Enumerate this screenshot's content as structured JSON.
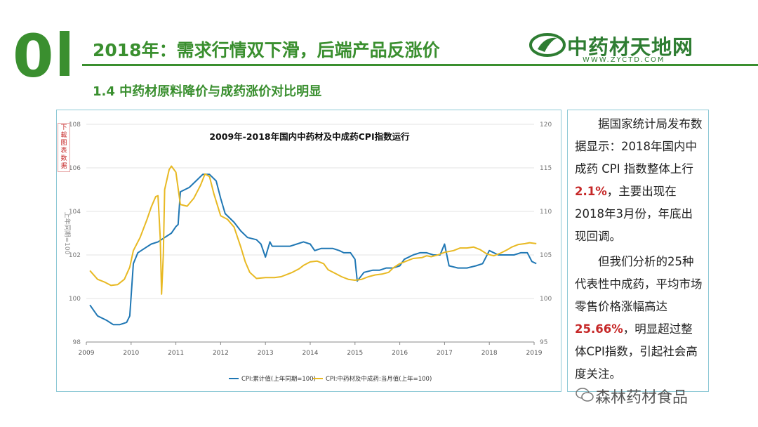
{
  "slide": {
    "number": "0",
    "title": "2018年：需求行情双下滑，后端产品反涨价",
    "subtitle": "1.4  中药材原料降价与成药涨价对比明显"
  },
  "logo": {
    "text": "中药材天地网",
    "url": "WWW.ZYCTD.COM"
  },
  "side_button": "下载图表数据",
  "text_panel": {
    "p1_a": "据国家统计局发布数据显示：2018年国内中成药 CPI 指数整体上行",
    "p1_highlight": "2.1%",
    "p1_b": "，主要出现在2018年3月份，年底出现回调。",
    "p2_a": "但我们分析的25种代表性中成药，平均市场零售价格涨幅高达",
    "p2_highlight": "25.66%",
    "p2_b": "，明显超过整体CPI指数，引起社会高度关注。"
  },
  "watermark": "森林药材食品",
  "colors": {
    "green": "#3a8f2f",
    "blue_series": "#1f77b4",
    "gold_series": "#e8b923",
    "highlight_red": "#c62828"
  },
  "chart_data": {
    "type": "line",
    "title": "2009年-2018年国内中药材及中成药CPI指数运行",
    "ylabel_left": "上年同期=100",
    "ylim_left": [
      98,
      108
    ],
    "yticks_left": [
      "98",
      "100",
      "102",
      "104",
      "106",
      "108"
    ],
    "ylim_right": [
      95,
      120
    ],
    "yticks_right": [
      "95",
      "100",
      "105",
      "110",
      "115",
      "120"
    ],
    "xlim": [
      2009,
      2019
    ],
    "xticks": [
      "2009",
      "2010",
      "2011",
      "2012",
      "2013",
      "2014",
      "2015",
      "2016",
      "2017",
      "2018",
      "2019"
    ],
    "grid": "horizontal",
    "legend_position": "bottom",
    "series": [
      {
        "name": "CPI:累计值(上年同期=100)",
        "axis": "left",
        "color": "#1f77b4",
        "points": [
          [
            2009.08,
            99.7
          ],
          [
            2009.25,
            99.2
          ],
          [
            2009.45,
            99.0
          ],
          [
            2009.6,
            98.8
          ],
          [
            2009.75,
            98.8
          ],
          [
            2009.9,
            98.9
          ],
          [
            2009.97,
            99.2
          ],
          [
            2010.05,
            101.6
          ],
          [
            2010.15,
            102.1
          ],
          [
            2010.3,
            102.3
          ],
          [
            2010.45,
            102.5
          ],
          [
            2010.6,
            102.6
          ],
          [
            2010.75,
            102.8
          ],
          [
            2010.9,
            103.0
          ],
          [
            2011.0,
            103.3
          ],
          [
            2011.05,
            103.4
          ],
          [
            2011.1,
            104.9
          ],
          [
            2011.3,
            105.1
          ],
          [
            2011.45,
            105.4
          ],
          [
            2011.6,
            105.7
          ],
          [
            2011.75,
            105.7
          ],
          [
            2011.9,
            105.4
          ],
          [
            2012.0,
            104.6
          ],
          [
            2012.1,
            103.9
          ],
          [
            2012.3,
            103.5
          ],
          [
            2012.45,
            103.1
          ],
          [
            2012.6,
            102.8
          ],
          [
            2012.8,
            102.7
          ],
          [
            2012.9,
            102.5
          ],
          [
            2013.0,
            101.9
          ],
          [
            2013.1,
            102.6
          ],
          [
            2013.15,
            102.4
          ],
          [
            2013.4,
            102.4
          ],
          [
            2013.55,
            102.4
          ],
          [
            2013.7,
            102.5
          ],
          [
            2013.85,
            102.6
          ],
          [
            2014.0,
            102.5
          ],
          [
            2014.1,
            102.2
          ],
          [
            2014.25,
            102.3
          ],
          [
            2014.5,
            102.3
          ],
          [
            2014.65,
            102.2
          ],
          [
            2014.75,
            102.1
          ],
          [
            2014.9,
            102.1
          ],
          [
            2015.0,
            101.8
          ],
          [
            2015.05,
            100.8
          ],
          [
            2015.2,
            101.2
          ],
          [
            2015.4,
            101.3
          ],
          [
            2015.55,
            101.3
          ],
          [
            2015.7,
            101.4
          ],
          [
            2015.85,
            101.4
          ],
          [
            2016.0,
            101.5
          ],
          [
            2016.1,
            101.8
          ],
          [
            2016.3,
            102.0
          ],
          [
            2016.45,
            102.1
          ],
          [
            2016.6,
            102.1
          ],
          [
            2016.75,
            102.0
          ],
          [
            2016.9,
            102.0
          ],
          [
            2017.0,
            102.5
          ],
          [
            2017.1,
            101.5
          ],
          [
            2017.3,
            101.4
          ],
          [
            2017.5,
            101.4
          ],
          [
            2017.7,
            101.5
          ],
          [
            2017.85,
            101.6
          ],
          [
            2018.0,
            102.2
          ],
          [
            2018.2,
            102.0
          ],
          [
            2018.4,
            102.0
          ],
          [
            2018.55,
            102.0
          ],
          [
            2018.7,
            102.1
          ],
          [
            2018.85,
            102.1
          ],
          [
            2018.95,
            101.7
          ],
          [
            2019.05,
            101.6
          ]
        ]
      },
      {
        "name": "CPI:中药材及中成药:当月值(上年=100)",
        "axis": "right",
        "color": "#e8b923",
        "points": [
          [
            2009.08,
            103.2
          ],
          [
            2009.25,
            102.2
          ],
          [
            2009.4,
            101.9
          ],
          [
            2009.55,
            101.5
          ],
          [
            2009.7,
            101.6
          ],
          [
            2009.85,
            102.2
          ],
          [
            2009.97,
            103.6
          ],
          [
            2010.05,
            105.5
          ],
          [
            2010.2,
            107.0
          ],
          [
            2010.35,
            109.0
          ],
          [
            2010.45,
            110.5
          ],
          [
            2010.55,
            111.7
          ],
          [
            2010.6,
            111.8
          ],
          [
            2010.65,
            107.0
          ],
          [
            2010.68,
            100.5
          ],
          [
            2010.72,
            105.0
          ],
          [
            2010.75,
            112.5
          ],
          [
            2010.85,
            114.8
          ],
          [
            2010.9,
            115.2
          ],
          [
            2011.0,
            114.5
          ],
          [
            2011.1,
            110.8
          ],
          [
            2011.25,
            110.6
          ],
          [
            2011.4,
            111.5
          ],
          [
            2011.55,
            113.0
          ],
          [
            2011.65,
            114.3
          ],
          [
            2011.75,
            114.0
          ],
          [
            2011.85,
            112.0
          ],
          [
            2012.0,
            109.5
          ],
          [
            2012.15,
            109.1
          ],
          [
            2012.3,
            108.2
          ],
          [
            2012.45,
            105.9
          ],
          [
            2012.55,
            104.2
          ],
          [
            2012.65,
            103.0
          ],
          [
            2012.8,
            102.3
          ],
          [
            2013.0,
            102.4
          ],
          [
            2013.2,
            102.4
          ],
          [
            2013.35,
            102.5
          ],
          [
            2013.5,
            102.8
          ],
          [
            2013.6,
            103.0
          ],
          [
            2013.75,
            103.4
          ],
          [
            2013.85,
            103.8
          ],
          [
            2014.0,
            104.2
          ],
          [
            2014.15,
            104.3
          ],
          [
            2014.3,
            104.0
          ],
          [
            2014.4,
            103.3
          ],
          [
            2014.55,
            102.9
          ],
          [
            2014.7,
            102.5
          ],
          [
            2014.85,
            102.2
          ],
          [
            2015.0,
            102.1
          ],
          [
            2015.15,
            102.2
          ],
          [
            2015.3,
            102.5
          ],
          [
            2015.45,
            102.7
          ],
          [
            2015.6,
            102.8
          ],
          [
            2015.75,
            103.0
          ],
          [
            2015.85,
            103.5
          ],
          [
            2016.0,
            104.0
          ],
          [
            2016.15,
            104.3
          ],
          [
            2016.3,
            104.6
          ],
          [
            2016.5,
            104.7
          ],
          [
            2016.6,
            104.9
          ],
          [
            2016.7,
            104.8
          ],
          [
            2016.85,
            105.0
          ],
          [
            2017.0,
            105.3
          ],
          [
            2017.2,
            105.5
          ],
          [
            2017.35,
            105.8
          ],
          [
            2017.5,
            105.8
          ],
          [
            2017.65,
            105.9
          ],
          [
            2017.8,
            105.6
          ],
          [
            2017.95,
            105.1
          ],
          [
            2018.1,
            104.9
          ],
          [
            2018.25,
            105.2
          ],
          [
            2018.4,
            105.6
          ],
          [
            2018.5,
            105.9
          ],
          [
            2018.65,
            106.2
          ],
          [
            2018.8,
            106.3
          ],
          [
            2018.9,
            106.4
          ],
          [
            2019.05,
            106.3
          ]
        ]
      }
    ]
  }
}
